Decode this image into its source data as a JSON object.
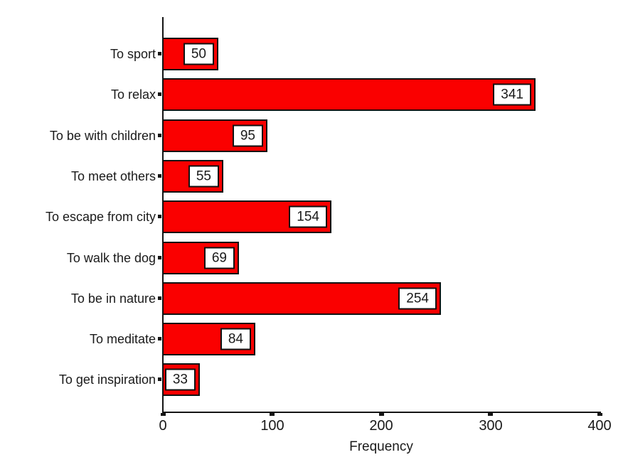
{
  "chart_data": {
    "type": "bar",
    "orientation": "horizontal",
    "title": "",
    "xlabel": "Frequency",
    "ylabel": "",
    "categories": [
      "To sport",
      "To relax",
      "To be with children",
      "To meet others",
      "To escape from city",
      "To walk the dog",
      "To be in nature",
      "To meditate",
      "To get inspiration"
    ],
    "values": [
      50,
      341,
      95,
      55,
      154,
      69,
      254,
      84,
      33
    ],
    "value_labels": [
      "50",
      "341",
      "95",
      "55",
      "154",
      "69",
      "254",
      "84",
      "33"
    ],
    "xlim": [
      0,
      400
    ],
    "x_ticks": [
      "0",
      "100",
      "200",
      "300",
      "400"
    ],
    "x_tick_values": [
      0,
      100,
      200,
      300,
      400
    ],
    "grid": false,
    "legend": false,
    "bar_color": "#fa0000",
    "bar_border_color": "#111111",
    "axis_color": "#141414",
    "value_box_background": "#ffffff",
    "value_labels_in_boxes": true
  }
}
